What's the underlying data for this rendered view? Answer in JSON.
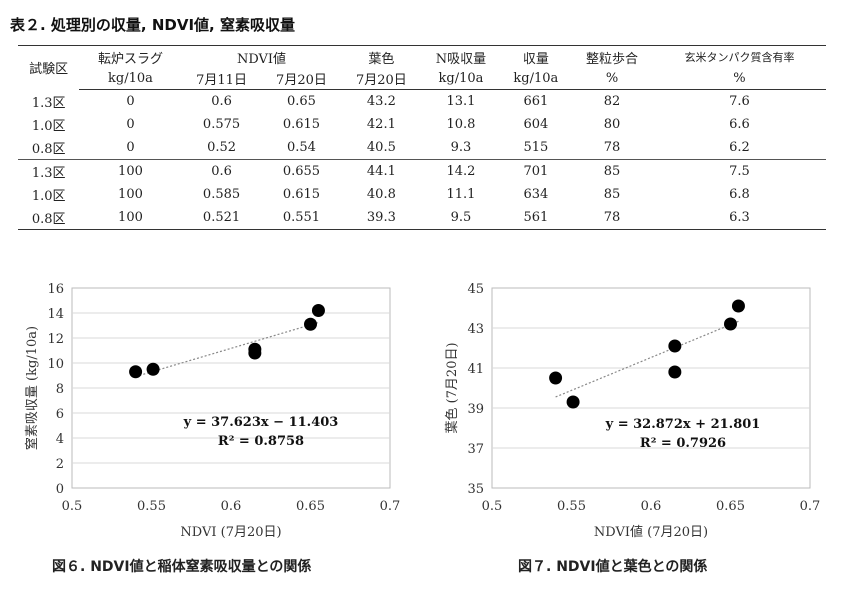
{
  "table_title": "表２. 処理別の収量, NDVI値, 窒素吸収量",
  "table": {
    "header_row1": [
      "試験区",
      "転炉スラグ",
      "NDVI値",
      "葉色",
      "N吸収量",
      "収量",
      "整粒歩合",
      "玄米タンパク質含有率"
    ],
    "header_row2": [
      "kg/10a",
      "7月11日",
      "7月20日",
      "7月20日",
      "kg/10a",
      "kg/10a",
      "%",
      "%"
    ],
    "rows": [
      [
        "1.3区",
        "0",
        "0.6",
        "0.65",
        "43.2",
        "13.1",
        "661",
        "82",
        "7.6"
      ],
      [
        "1.0区",
        "0",
        "0.575",
        "0.615",
        "42.1",
        "10.8",
        "604",
        "80",
        "6.6"
      ],
      [
        "0.8区",
        "0",
        "0.52",
        "0.54",
        "40.5",
        "9.3",
        "515",
        "78",
        "6.2"
      ],
      [
        "1.3区",
        "100",
        "0.6",
        "0.655",
        "44.1",
        "14.2",
        "701",
        "85",
        "7.5"
      ],
      [
        "1.0区",
        "100",
        "0.585",
        "0.615",
        "40.8",
        "11.1",
        "634",
        "85",
        "6.8"
      ],
      [
        "0.8区",
        "100",
        "0.521",
        "0.551",
        "39.3",
        "9.5",
        "561",
        "78",
        "6.3"
      ]
    ]
  },
  "chart_data": [
    {
      "type": "scatter",
      "xlabel": "NDVI (7月20日)",
      "ylabel": "窒素吸収量 (kg/10a)",
      "xlim": [
        0.5,
        0.7
      ],
      "ylim": [
        0,
        16
      ],
      "xticks": [
        "0.5",
        "0.55",
        "0.6",
        "0.65",
        "0.7"
      ],
      "yticks": [
        "0",
        "2",
        "4",
        "6",
        "8",
        "10",
        "12",
        "14",
        "16"
      ],
      "x": [
        0.54,
        0.551,
        0.615,
        0.615,
        0.65,
        0.655
      ],
      "y": [
        9.3,
        9.5,
        11.1,
        10.8,
        13.1,
        14.2
      ],
      "trendline": {
        "slope": 37.623,
        "intercept": -11.403
      },
      "equation": "y = 37.623x − 11.403",
      "r2": "R² = 0.8758",
      "grid": "horizontal",
      "caption": "図６. NDVI値と稲体窒素吸収量との関係"
    },
    {
      "type": "scatter",
      "xlabel": "NDVI値 (7月20日)",
      "ylabel": "葉色 (7月20日)",
      "xlim": [
        0.5,
        0.7
      ],
      "ylim": [
        35,
        45
      ],
      "xticks": [
        "0.5",
        "0.55",
        "0.6",
        "0.65",
        "0.7"
      ],
      "yticks": [
        "35",
        "37",
        "39",
        "41",
        "43",
        "45"
      ],
      "x": [
        0.54,
        0.551,
        0.615,
        0.615,
        0.65,
        0.655
      ],
      "y": [
        40.5,
        39.3,
        42.1,
        40.8,
        43.2,
        44.1
      ],
      "trendline": {
        "slope": 32.872,
        "intercept": 21.801
      },
      "equation": "y = 32.872x + 21.801",
      "r2": "R² = 0.7926",
      "grid": "horizontal",
      "caption": "図７. NDVI値と葉色との関係"
    }
  ]
}
